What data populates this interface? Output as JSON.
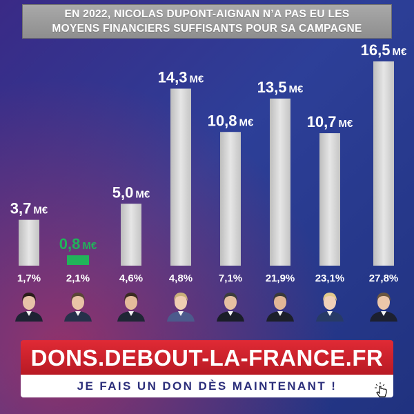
{
  "title": {
    "line1": "EN 2022, NICOLAS DUPONT-AIGNAN N’A PAS EU LES",
    "line2": "MOYENS FINANCIERS SUFFISANTS POUR SA CAMPAGNE"
  },
  "chart_data": {
    "type": "bar",
    "unit": "M€",
    "values": [
      3.7,
      0.8,
      5.0,
      14.3,
      10.8,
      13.5,
      10.7,
      16.5
    ],
    "value_labels": [
      "3,7",
      "0,8",
      "5,0",
      "14,3",
      "10,8",
      "13,5",
      "10,7",
      "16,5"
    ],
    "categories": [
      "1,7%",
      "2,1%",
      "4,6%",
      "4,8%",
      "7,1%",
      "21,9%",
      "23,1%",
      "27,8%"
    ],
    "highlight_index": 1,
    "colors": {
      "bar": "#d9d9d9",
      "highlight": "#21b35a",
      "label": "#ffffff",
      "highlight_label": "#21b35a"
    }
  },
  "footer": {
    "site": "DONS.DEBOUT-LA-FRANCE.FR",
    "cta": "JE FAIS UN DON DÈS MAINTENANT !"
  }
}
